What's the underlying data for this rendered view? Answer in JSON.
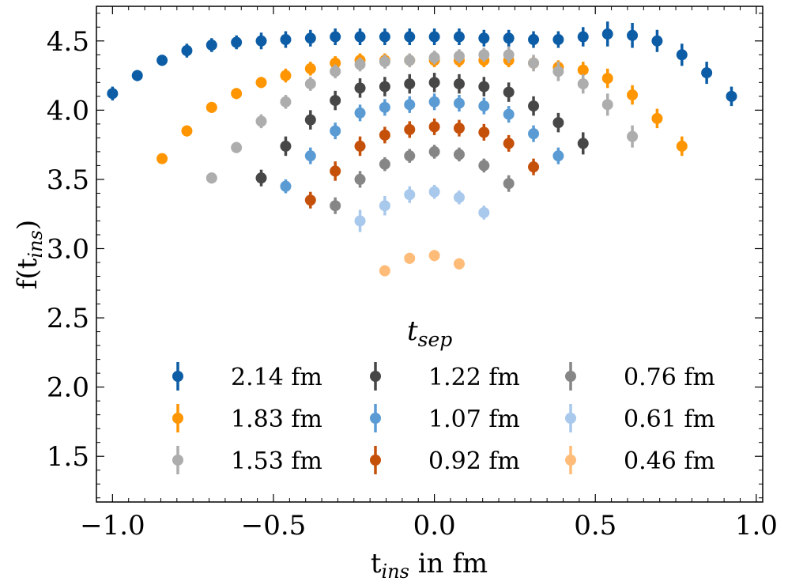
{
  "chart_data": {
    "type": "scatter",
    "title": "",
    "xlabel": "t_ins in fm",
    "xlabel_main": "t",
    "xlabel_sub": "ins",
    "xlabel_rest": " in fm",
    "ylabel": "f(t_ins)",
    "ylabel_pre": "f(t",
    "ylabel_sub": "ins",
    "ylabel_post": ")",
    "xlim": [
      -1.05,
      1.02
    ],
    "ylim": [
      1.17,
      4.75
    ],
    "xticks": [
      -1.0,
      -0.5,
      0.0,
      0.5,
      1.0
    ],
    "xtick_labels": [
      "−1.0",
      "−0.5",
      "0.0",
      "0.5",
      "1.0"
    ],
    "yticks": [
      1.5,
      2.0,
      2.5,
      3.0,
      3.5,
      4.0,
      4.5
    ],
    "ytick_labels": [
      "1.5",
      "2.0",
      "2.5",
      "3.0",
      "3.5",
      "4.0",
      "4.5"
    ],
    "grid": false,
    "legend": {
      "title_main": "t",
      "title_sub": "sep",
      "position": "lower-center",
      "columns": 3
    },
    "series": [
      {
        "name": "2.14 fm",
        "color": "#0c5da5",
        "x": [
          -1.0,
          -0.923,
          -0.846,
          -0.769,
          -0.692,
          -0.615,
          -0.538,
          -0.462,
          -0.385,
          -0.308,
          -0.231,
          -0.154,
          -0.077,
          0.0,
          0.077,
          0.154,
          0.231,
          0.308,
          0.385,
          0.462,
          0.538,
          0.615,
          0.692,
          0.769,
          0.846,
          0.923
        ],
        "y": [
          4.12,
          4.25,
          4.36,
          4.43,
          4.47,
          4.49,
          4.5,
          4.51,
          4.52,
          4.53,
          4.53,
          4.53,
          4.53,
          4.53,
          4.53,
          4.52,
          4.52,
          4.51,
          4.51,
          4.53,
          4.55,
          4.54,
          4.5,
          4.4,
          4.27,
          4.1
        ],
        "err": [
          0.05,
          0.04,
          0.04,
          0.05,
          0.05,
          0.05,
          0.06,
          0.06,
          0.06,
          0.06,
          0.06,
          0.06,
          0.06,
          0.06,
          0.06,
          0.06,
          0.06,
          0.06,
          0.06,
          0.07,
          0.09,
          0.09,
          0.08,
          0.08,
          0.08,
          0.07
        ]
      },
      {
        "name": "1.83 fm",
        "color": "#ff9500",
        "x": [
          -0.846,
          -0.769,
          -0.692,
          -0.615,
          -0.538,
          -0.462,
          -0.385,
          -0.308,
          -0.231,
          -0.154,
          -0.077,
          0.0,
          0.077,
          0.154,
          0.231,
          0.308,
          0.385,
          0.462,
          0.538,
          0.615,
          0.692,
          0.769
        ],
        "y": [
          3.65,
          3.85,
          4.02,
          4.12,
          4.2,
          4.25,
          4.3,
          4.34,
          4.36,
          4.36,
          4.36,
          4.36,
          4.36,
          4.36,
          4.36,
          4.34,
          4.31,
          4.29,
          4.23,
          4.11,
          3.94,
          3.74
        ],
        "err": [
          0.03,
          0.04,
          0.04,
          0.04,
          0.04,
          0.05,
          0.05,
          0.05,
          0.05,
          0.05,
          0.05,
          0.05,
          0.05,
          0.05,
          0.05,
          0.05,
          0.05,
          0.06,
          0.07,
          0.07,
          0.07,
          0.07
        ]
      },
      {
        "name": "1.53 fm",
        "color": "#adadad",
        "x": [
          -0.692,
          -0.615,
          -0.538,
          -0.462,
          -0.385,
          -0.308,
          -0.231,
          -0.154,
          -0.077,
          0.0,
          0.077,
          0.154,
          0.231,
          0.308,
          0.385,
          0.462,
          0.538,
          0.615
        ],
        "y": [
          3.51,
          3.73,
          3.92,
          4.06,
          4.19,
          4.28,
          4.33,
          4.35,
          4.36,
          4.38,
          4.39,
          4.4,
          4.4,
          4.34,
          4.28,
          4.19,
          4.04,
          3.81
        ],
        "err": [
          0.04,
          0.04,
          0.05,
          0.05,
          0.05,
          0.05,
          0.05,
          0.05,
          0.05,
          0.05,
          0.05,
          0.05,
          0.06,
          0.06,
          0.07,
          0.07,
          0.08,
          0.08
        ]
      },
      {
        "name": "1.22 fm",
        "color": "#474747",
        "x": [
          -0.538,
          -0.462,
          -0.385,
          -0.308,
          -0.231,
          -0.154,
          -0.077,
          0.0,
          0.077,
          0.154,
          0.231,
          0.308,
          0.385,
          0.462
        ],
        "y": [
          3.51,
          3.74,
          3.93,
          4.07,
          4.16,
          4.17,
          4.19,
          4.2,
          4.19,
          4.17,
          4.13,
          4.03,
          3.91,
          3.76
        ],
        "err": [
          0.06,
          0.07,
          0.07,
          0.07,
          0.07,
          0.07,
          0.07,
          0.07,
          0.07,
          0.07,
          0.07,
          0.07,
          0.07,
          0.08
        ]
      },
      {
        "name": "1.07 fm",
        "color": "#5a9bd4",
        "x": [
          -0.462,
          -0.385,
          -0.308,
          -0.231,
          -0.154,
          -0.077,
          0.0,
          0.077,
          0.154,
          0.231,
          0.308,
          0.385
        ],
        "y": [
          3.45,
          3.67,
          3.85,
          3.98,
          4.02,
          4.04,
          4.06,
          4.05,
          4.03,
          3.97,
          3.83,
          3.67
        ],
        "err": [
          0.05,
          0.06,
          0.06,
          0.06,
          0.06,
          0.06,
          0.06,
          0.06,
          0.06,
          0.06,
          0.06,
          0.06
        ]
      },
      {
        "name": "0.92 fm",
        "color": "#c5500a",
        "x": [
          -0.385,
          -0.308,
          -0.231,
          -0.154,
          -0.077,
          0.0,
          0.077,
          0.154,
          0.231,
          0.308
        ],
        "y": [
          3.35,
          3.56,
          3.74,
          3.82,
          3.86,
          3.88,
          3.87,
          3.84,
          3.76,
          3.59
        ],
        "err": [
          0.06,
          0.07,
          0.07,
          0.06,
          0.06,
          0.06,
          0.06,
          0.06,
          0.06,
          0.06
        ]
      },
      {
        "name": "0.76 fm",
        "color": "#868686",
        "x": [
          -0.308,
          -0.231,
          -0.154,
          -0.077,
          0.0,
          0.077,
          0.154,
          0.231
        ],
        "y": [
          3.31,
          3.5,
          3.61,
          3.67,
          3.7,
          3.68,
          3.6,
          3.47
        ],
        "err": [
          0.06,
          0.06,
          0.05,
          0.05,
          0.05,
          0.05,
          0.05,
          0.06
        ]
      },
      {
        "name": "0.61 fm",
        "color": "#a8c8ec",
        "x": [
          -0.231,
          -0.154,
          -0.077,
          0.0,
          0.077,
          0.154
        ],
        "y": [
          3.2,
          3.31,
          3.39,
          3.41,
          3.37,
          3.26
        ],
        "err": [
          0.08,
          0.07,
          0.06,
          0.05,
          0.05,
          0.05
        ]
      },
      {
        "name": "0.46 fm",
        "color": "#ffbc79",
        "x": [
          -0.154,
          -0.077,
          0.0,
          0.077
        ],
        "y": [
          2.84,
          2.93,
          2.95,
          2.89
        ],
        "err": [
          0.04,
          0.04,
          0.04,
          0.04
        ]
      }
    ]
  }
}
